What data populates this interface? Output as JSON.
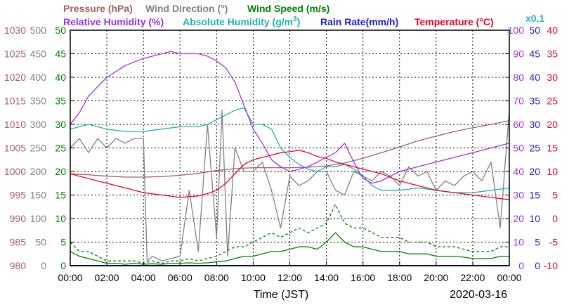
{
  "chart_data": {
    "type": "line",
    "title": "",
    "date": "2020-03-16",
    "xlabel": "Time (JST)",
    "x_ticks": [
      "00:00",
      "02:00",
      "04:00",
      "06:00",
      "08:00",
      "10:00",
      "12:00",
      "14:00",
      "16:00",
      "18:00",
      "20:00",
      "22:00",
      "00:00"
    ],
    "x_range_hours": [
      0,
      24
    ],
    "grid": true,
    "legend_placement": "top",
    "legend_row1": [
      {
        "label": "Pressure (hPa)",
        "color": "#a06060"
      },
      {
        "label": "Wind Direction (°)",
        "color": "#808080"
      },
      {
        "label": "Wind Speed (m/s)",
        "color": "#008000"
      }
    ],
    "legend_row2": [
      {
        "label": "Relative Humidity (%)",
        "color": "#9933dd"
      },
      {
        "label": "Absolute Humidity (g/m",
        "sup": "3",
        "close": ")",
        "color": "#22b0b0"
      },
      {
        "label": "Rain Rate(mm/h)",
        "color": "#1a1acc"
      },
      {
        "label": "Temperature (°C)",
        "color": "#e8002a"
      }
    ],
    "abs_humidity_scale_note": {
      "text": "x0.1",
      "color": "#22b0b0"
    },
    "axes": {
      "pressure": {
        "color": "#a06060",
        "range": [
          980,
          1030
        ],
        "ticks": [
          "1030",
          "1025",
          "1020",
          "1015",
          "1010",
          "1005",
          "1000",
          "995",
          "990",
          "985",
          "980"
        ]
      },
      "wind_direction": {
        "color": "#808080",
        "range": [
          0,
          500
        ],
        "ticks": [
          "500",
          "450",
          "400",
          "350",
          "300",
          "250",
          "200",
          "150",
          "100",
          "50",
          "0"
        ]
      },
      "wind_speed": {
        "color": "#008000",
        "range": [
          0,
          50
        ],
        "ticks": [
          "50",
          "45",
          "40",
          "35",
          "30",
          "25",
          "20",
          "15",
          "10",
          "5",
          "0"
        ]
      },
      "humidity": {
        "color": "#9933dd",
        "range": [
          0,
          100
        ],
        "ticks": [
          "100",
          "90",
          "80",
          "70",
          "60",
          "50",
          "40",
          "30",
          "20",
          "10",
          "0"
        ]
      },
      "rain_rate": {
        "color": "#1a1acc",
        "range": [
          0,
          50
        ],
        "ticks": [
          "50",
          "45",
          "40",
          "35",
          "30",
          "25",
          "20",
          "15",
          "10",
          "5",
          "0"
        ]
      },
      "temperature": {
        "color": "#e8002a",
        "range": [
          -10,
          40
        ],
        "ticks": [
          "40",
          "35",
          "30",
          "25",
          "20",
          "15",
          "10",
          "5",
          "0",
          "-5",
          "-10"
        ]
      }
    },
    "series": [
      {
        "name": "Temperature",
        "color": "#e8002a",
        "axis": "temperature",
        "x": [
          0,
          1,
          2,
          3,
          4,
          5,
          6,
          7,
          7.5,
          8,
          8.5,
          9,
          9.5,
          10,
          10.5,
          11,
          11.5,
          12,
          12.5,
          13,
          13.5,
          14,
          14.5,
          15,
          15.5,
          16,
          17,
          18,
          19,
          20,
          21,
          22,
          23,
          24
        ],
        "y": [
          9.5,
          8.5,
          7.5,
          6.5,
          5.5,
          5,
          4.5,
          4.8,
          5.3,
          6,
          7.5,
          9.5,
          11.5,
          12.5,
          13,
          13.5,
          14,
          14.2,
          14.5,
          14,
          13.2,
          12.8,
          12,
          11.5,
          11,
          10.5,
          9.5,
          8,
          7,
          6,
          5.5,
          5,
          4.5,
          4
        ]
      },
      {
        "name": "Relative Humidity",
        "color": "#9933dd",
        "axis": "humidity",
        "x": [
          0,
          0.5,
          1,
          2,
          3,
          4,
          5,
          5.5,
          6,
          7,
          7.5,
          8,
          8.5,
          9,
          9.5,
          10,
          10.5,
          11,
          11.5,
          12,
          12.5,
          13,
          13.5,
          14,
          14.5,
          15,
          15.5,
          16,
          16.5,
          17,
          17.5,
          18,
          19,
          20,
          21,
          22,
          23,
          24
        ],
        "y": [
          60,
          65,
          72,
          80,
          85,
          88,
          90,
          91,
          90,
          90,
          89,
          87,
          84,
          78,
          68,
          58,
          52,
          45,
          42,
          40,
          41,
          42,
          44,
          46,
          48,
          52,
          44,
          37,
          35,
          36,
          38,
          40,
          42,
          44,
          46,
          48,
          50,
          52
        ]
      },
      {
        "name": "Absolute Humidity (x0.1)",
        "color": "#22b0b0",
        "axis": "humidity",
        "x": [
          0,
          1,
          2,
          3,
          4,
          5,
          6,
          7,
          7.5,
          8,
          8.5,
          9,
          9.5,
          10,
          10.5,
          11,
          11.5,
          12,
          12.5,
          13,
          13.5,
          14,
          14.5,
          15,
          15.5,
          16,
          16.5,
          17,
          18,
          19,
          20,
          21,
          22,
          23,
          24
        ],
        "y": [
          58,
          60,
          58,
          57,
          57,
          58,
          59,
          59,
          60,
          62,
          64,
          66,
          67,
          60,
          60,
          58,
          50,
          46,
          43,
          41,
          40,
          42,
          42,
          43,
          41,
          38,
          34,
          32,
          32,
          33,
          32,
          31,
          31,
          32,
          33
        ]
      },
      {
        "name": "Pressure",
        "color": "#a06060",
        "axis": "pressure",
        "x": [
          0,
          1,
          2,
          3,
          4,
          5,
          6,
          7,
          8,
          9,
          10,
          11,
          12,
          13,
          14,
          15,
          16,
          17,
          18,
          19,
          20,
          21,
          22,
          23,
          24
        ],
        "y": [
          999.5,
          999.3,
          999,
          998.8,
          998.8,
          998.9,
          999.2,
          999.6,
          1000.2,
          1000.6,
          1000.8,
          1000.8,
          1000.8,
          1000.9,
          1001.2,
          1001.8,
          1002.8,
          1004,
          1005.2,
          1006.5,
          1007.5,
          1008.5,
          1009.3,
          1010,
          1010.8
        ]
      },
      {
        "name": "Wind Direction",
        "color": "#808080",
        "axis": "wind_direction",
        "x": [
          0,
          0.5,
          1,
          1.5,
          2,
          2.5,
          3,
          3.5,
          4,
          4.2,
          4.5,
          5,
          5.5,
          6,
          6.5,
          7,
          7.5,
          8,
          8.3,
          8.6,
          9,
          9.5,
          10,
          10.5,
          11,
          11.5,
          12,
          12.5,
          13,
          13.5,
          14,
          14.5,
          15,
          15.5,
          16,
          16.5,
          17,
          17.5,
          18,
          18.5,
          19,
          19.5,
          20,
          20.5,
          21,
          21.5,
          22,
          22.5,
          23,
          23.5,
          24
        ],
        "y": [
          250,
          270,
          240,
          270,
          250,
          270,
          260,
          270,
          270,
          10,
          20,
          10,
          15,
          20,
          160,
          30,
          300,
          60,
          330,
          20,
          250,
          200,
          200,
          220,
          160,
          80,
          190,
          170,
          180,
          200,
          200,
          160,
          150,
          200,
          190,
          180,
          200,
          190,
          170,
          210,
          190,
          200,
          160,
          180,
          170,
          190,
          200,
          180,
          220,
          80,
          330
        ]
      },
      {
        "name": "Wind Speed",
        "color": "#008000",
        "axis": "wind_speed",
        "x": [
          0,
          0.5,
          1,
          1.5,
          2,
          2.5,
          3,
          3.5,
          4,
          4.5,
          5,
          5.5,
          6,
          6.5,
          7,
          7.5,
          8,
          8.5,
          9,
          9.5,
          10,
          10.5,
          11,
          11.5,
          12,
          12.5,
          13,
          13.5,
          14,
          14.5,
          15,
          15.5,
          16,
          16.5,
          17,
          17.5,
          18,
          18.5,
          19,
          19.5,
          20,
          20.5,
          21,
          21.5,
          22,
          22.5,
          23,
          23.5,
          24
        ],
        "y": [
          3,
          2,
          1.5,
          1,
          0.5,
          0.5,
          0.3,
          0.5,
          0.3,
          0.4,
          0.3,
          0.5,
          0.5,
          0.6,
          0.5,
          0.6,
          0.8,
          1,
          1.5,
          2,
          2,
          2.5,
          3,
          3,
          3.5,
          4,
          4,
          3.5,
          5,
          7,
          5,
          4,
          4,
          3.5,
          3,
          3,
          3,
          2.5,
          2.5,
          2.5,
          2,
          2,
          2,
          1.8,
          1.5,
          1.5,
          1.5,
          2,
          2
        ]
      },
      {
        "name": "Wind Speed (gust)",
        "color": "#008000",
        "axis": "wind_speed",
        "dashed": true,
        "x": [
          0,
          0.5,
          1,
          1.5,
          2,
          2.5,
          3,
          3.5,
          4,
          4.5,
          5,
          5.5,
          6,
          6.5,
          7,
          7.5,
          8,
          8.5,
          9,
          9.5,
          10,
          10.5,
          11,
          11.5,
          12,
          12.5,
          13,
          13.5,
          14,
          14.5,
          15,
          15.5,
          16,
          16.5,
          17,
          17.5,
          18,
          18.5,
          19,
          19.5,
          20,
          20.5,
          21,
          21.5,
          22,
          22.5,
          23,
          23.5,
          24
        ],
        "y": [
          5,
          3,
          3,
          2,
          1,
          1,
          1,
          1,
          0.5,
          1,
          0.5,
          1,
          1,
          1.5,
          1,
          1.5,
          2,
          3,
          4,
          4,
          5,
          6,
          7,
          6,
          7,
          8,
          7,
          8,
          9,
          13,
          9,
          8,
          8,
          7,
          6,
          6,
          6,
          5,
          5,
          5,
          4,
          4,
          4,
          3.5,
          3,
          3,
          3,
          4,
          4
        ]
      },
      {
        "name": "Rain Rate",
        "color": "#1a1acc",
        "axis": "rain_rate",
        "x": [
          0,
          24
        ],
        "y": [
          0,
          0
        ]
      }
    ]
  }
}
